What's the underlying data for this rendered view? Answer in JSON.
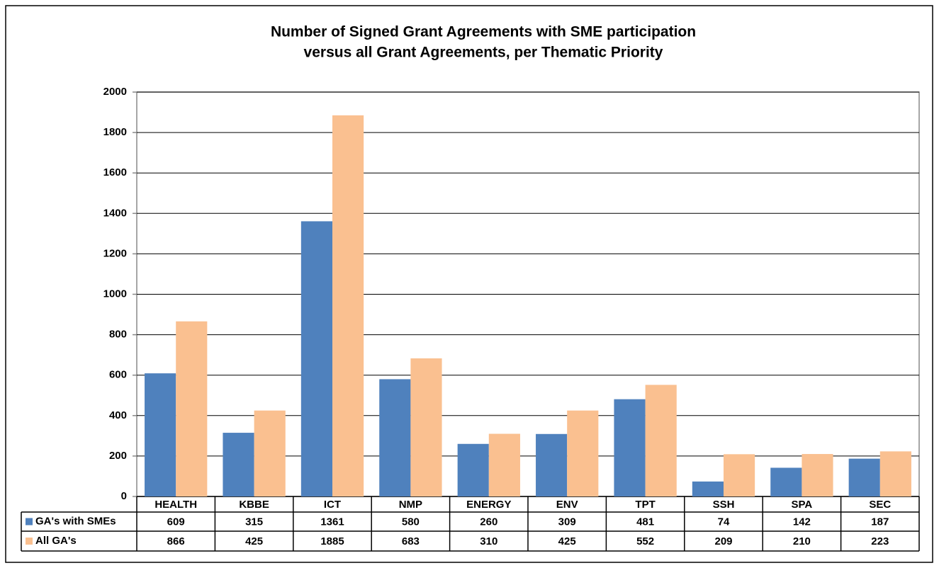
{
  "chart_data": {
    "type": "bar",
    "title": [
      "Number of Signed Grant Agreements with SME participation",
      "versus all Grant Agreements, per Thematic Priority"
    ],
    "categories": [
      "HEALTH",
      "KBBE",
      "ICT",
      "NMP",
      "ENERGY",
      "ENV",
      "TPT",
      "SSH",
      "SPA",
      "SEC"
    ],
    "series": [
      {
        "name": "GA's with SMEs",
        "color": "#4f81bd",
        "values": [
          609,
          315,
          1361,
          580,
          260,
          309,
          481,
          74,
          142,
          187
        ]
      },
      {
        "name": "All GA's",
        "color": "#fac090",
        "values": [
          866,
          425,
          1885,
          683,
          310,
          425,
          552,
          209,
          210,
          223
        ]
      }
    ],
    "ylim": [
      0,
      2000
    ],
    "yticks": [
      0,
      200,
      400,
      600,
      800,
      1000,
      1200,
      1400,
      1600,
      1800,
      2000
    ],
    "grid": true
  }
}
